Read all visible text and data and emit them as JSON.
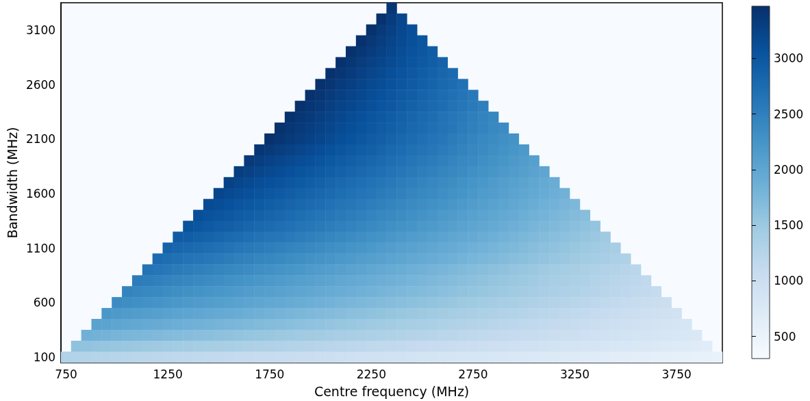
{
  "chart_data": {
    "type": "heatmap",
    "xlabel": "Centre frequency (MHz)",
    "ylabel": "Bandwidth (MHz)",
    "categories": [
      "750",
      null,
      null,
      null,
      null,
      null,
      null,
      null,
      null,
      null,
      "1250",
      null,
      null,
      null,
      null,
      null,
      null,
      null,
      null,
      null,
      "1750",
      null,
      null,
      null,
      null,
      null,
      null,
      null,
      null,
      null,
      "2250",
      null,
      null,
      null,
      null,
      null,
      null,
      null,
      null,
      null,
      "2750",
      null,
      null,
      null,
      null,
      null,
      null,
      null,
      null,
      null,
      "3250",
      null,
      null,
      null,
      null,
      null,
      null,
      null,
      null,
      null,
      "3750",
      null,
      null,
      null,
      null
    ],
    "y_categories": [
      null,
      null,
      "3100",
      null,
      null,
      null,
      null,
      "2600",
      null,
      null,
      null,
      null,
      "2100",
      null,
      null,
      null,
      null,
      "1600",
      null,
      null,
      null,
      null,
      "1100",
      null,
      null,
      null,
      null,
      "600",
      null,
      null,
      null,
      null,
      "100"
    ],
    "clim": [
      300,
      3470
    ],
    "cticks": [
      500,
      1000,
      1500,
      2000,
      2500,
      3000
    ],
    "cells": [
      [
        null,
        null,
        null,
        null,
        null,
        null,
        null,
        null,
        null,
        null,
        null,
        null,
        null,
        null,
        null,
        null,
        null,
        null,
        null,
        null,
        null,
        null,
        null,
        null,
        null,
        null,
        null,
        null,
        null,
        null,
        null,
        null,
        3400,
        null,
        null,
        null,
        null,
        null,
        null,
        null,
        null,
        null,
        null,
        null,
        null,
        null,
        null,
        null,
        null,
        null,
        null,
        null,
        null,
        null,
        null,
        null,
        null,
        null,
        null,
        null,
        null,
        null,
        null,
        null,
        null
      ],
      [
        null,
        null,
        null,
        null,
        null,
        null,
        null,
        null,
        null,
        null,
        null,
        null,
        null,
        null,
        null,
        null,
        null,
        null,
        null,
        null,
        null,
        null,
        null,
        null,
        null,
        null,
        null,
        null,
        null,
        null,
        null,
        3450,
        3320,
        3190,
        null,
        null,
        null,
        null,
        null,
        null,
        null,
        null,
        null,
        null,
        null,
        null,
        null,
        null,
        null,
        null,
        null,
        null,
        null,
        null,
        null,
        null,
        null,
        null,
        null,
        null,
        null,
        null,
        null,
        null,
        null
      ],
      [
        null,
        null,
        null,
        null,
        null,
        null,
        null,
        null,
        null,
        null,
        null,
        null,
        null,
        null,
        null,
        null,
        null,
        null,
        null,
        null,
        null,
        null,
        null,
        null,
        null,
        null,
        null,
        null,
        null,
        null,
        3450,
        3362,
        3274,
        3186,
        3098,
        null,
        null,
        null,
        null,
        null,
        null,
        null,
        null,
        null,
        null,
        null,
        null,
        null,
        null,
        null,
        null,
        null,
        null,
        null,
        null,
        null,
        null,
        null,
        null,
        null,
        null,
        null,
        null,
        null,
        null
      ],
      [
        null,
        null,
        null,
        null,
        null,
        null,
        null,
        null,
        null,
        null,
        null,
        null,
        null,
        null,
        null,
        null,
        null,
        null,
        null,
        null,
        null,
        null,
        null,
        null,
        null,
        null,
        null,
        null,
        null,
        3450,
        3378,
        3306,
        3234,
        3162,
        3090,
        3018,
        null,
        null,
        null,
        null,
        null,
        null,
        null,
        null,
        null,
        null,
        null,
        null,
        null,
        null,
        null,
        null,
        null,
        null,
        null,
        null,
        null,
        null,
        null,
        null,
        null,
        null,
        null,
        null,
        null
      ],
      [
        null,
        null,
        null,
        null,
        null,
        null,
        null,
        null,
        null,
        null,
        null,
        null,
        null,
        null,
        null,
        null,
        null,
        null,
        null,
        null,
        null,
        null,
        null,
        null,
        null,
        null,
        null,
        null,
        3450,
        3385,
        3320,
        3255,
        3190,
        3125,
        3060,
        2995,
        2930,
        null,
        null,
        null,
        null,
        null,
        null,
        null,
        null,
        null,
        null,
        null,
        null,
        null,
        null,
        null,
        null,
        null,
        null,
        null,
        null,
        null,
        null,
        null,
        null,
        null,
        null,
        null,
        null
      ],
      [
        null,
        null,
        null,
        null,
        null,
        null,
        null,
        null,
        null,
        null,
        null,
        null,
        null,
        null,
        null,
        null,
        null,
        null,
        null,
        null,
        null,
        null,
        null,
        null,
        null,
        null,
        null,
        3450,
        3390,
        3330,
        3270,
        3210,
        3150,
        3090,
        3030,
        2970,
        2910,
        2850,
        null,
        null,
        null,
        null,
        null,
        null,
        null,
        null,
        null,
        null,
        null,
        null,
        null,
        null,
        null,
        null,
        null,
        null,
        null,
        null,
        null,
        null,
        null,
        null,
        null,
        null,
        null
      ],
      [
        null,
        null,
        null,
        null,
        null,
        null,
        null,
        null,
        null,
        null,
        null,
        null,
        null,
        null,
        null,
        null,
        null,
        null,
        null,
        null,
        null,
        null,
        null,
        null,
        null,
        null,
        3450,
        3392,
        3334,
        3276,
        3218,
        3160,
        3102,
        3044,
        2986,
        2928,
        2870,
        2812,
        2754,
        null,
        null,
        null,
        null,
        null,
        null,
        null,
        null,
        null,
        null,
        null,
        null,
        null,
        null,
        null,
        null,
        null,
        null,
        null,
        null,
        null,
        null,
        null,
        null,
        null,
        null
      ],
      [
        null,
        null,
        null,
        null,
        null,
        null,
        null,
        null,
        null,
        null,
        null,
        null,
        null,
        null,
        null,
        null,
        null,
        null,
        null,
        null,
        null,
        null,
        null,
        null,
        null,
        3450,
        3395,
        3340,
        3285,
        3230,
        3175,
        3120,
        3065,
        3010,
        2955,
        2900,
        2845,
        2790,
        2735,
        2680,
        null,
        null,
        null,
        null,
        null,
        null,
        null,
        null,
        null,
        null,
        null,
        null,
        null,
        null,
        null,
        null,
        null,
        null,
        null,
        null,
        null,
        null,
        null,
        null,
        null
      ],
      [
        null,
        null,
        null,
        null,
        null,
        null,
        null,
        null,
        null,
        null,
        null,
        null,
        null,
        null,
        null,
        null,
        null,
        null,
        null,
        null,
        null,
        null,
        null,
        null,
        3450,
        3396,
        3342,
        3288,
        3234,
        3180,
        3126,
        3072,
        3018,
        2964,
        2910,
        2856,
        2802,
        2748,
        2694,
        2640,
        2586,
        null,
        null,
        null,
        null,
        null,
        null,
        null,
        null,
        null,
        null,
        null,
        null,
        null,
        null,
        null,
        null,
        null,
        null,
        null,
        null,
        null,
        null,
        null,
        null
      ],
      [
        null,
        null,
        null,
        null,
        null,
        null,
        null,
        null,
        null,
        null,
        null,
        null,
        null,
        null,
        null,
        null,
        null,
        null,
        null,
        null,
        null,
        null,
        null,
        3450,
        3398,
        3346,
        3294,
        3242,
        3190,
        3138,
        3086,
        3034,
        2982,
        2930,
        2878,
        2826,
        2774,
        2722,
        2670,
        2618,
        2566,
        2514,
        null,
        null,
        null,
        null,
        null,
        null,
        null,
        null,
        null,
        null,
        null,
        null,
        null,
        null,
        null,
        null,
        null,
        null,
        null,
        null,
        null,
        null,
        null
      ],
      [
        null,
        null,
        null,
        null,
        null,
        null,
        null,
        null,
        null,
        null,
        null,
        null,
        null,
        null,
        null,
        null,
        null,
        null,
        null,
        null,
        null,
        null,
        3450,
        3398,
        3346,
        3294,
        3242,
        3190,
        3138,
        3086,
        3034,
        2982,
        2930,
        2878,
        2826,
        2774,
        2722,
        2670,
        2618,
        2566,
        2514,
        2462,
        2410,
        null,
        null,
        null,
        null,
        null,
        null,
        null,
        null,
        null,
        null,
        null,
        null,
        null,
        null,
        null,
        null,
        null,
        null,
        null,
        null,
        null,
        null
      ],
      [
        null,
        null,
        null,
        null,
        null,
        null,
        null,
        null,
        null,
        null,
        null,
        null,
        null,
        null,
        null,
        null,
        null,
        null,
        null,
        null,
        null,
        3450,
        3400,
        3350,
        3300,
        3250,
        3200,
        3150,
        3100,
        3050,
        3000,
        2950,
        2900,
        2850,
        2800,
        2750,
        2700,
        2650,
        2600,
        2550,
        2500,
        2450,
        2400,
        2350,
        null,
        null,
        null,
        null,
        null,
        null,
        null,
        null,
        null,
        null,
        null,
        null,
        null,
        null,
        null,
        null,
        null,
        null,
        null,
        null,
        null
      ],
      [
        null,
        null,
        null,
        null,
        null,
        null,
        null,
        null,
        null,
        null,
        null,
        null,
        null,
        null,
        null,
        null,
        null,
        null,
        null,
        null,
        3450,
        3400,
        3350,
        3300,
        3250,
        3200,
        3150,
        3100,
        3050,
        3000,
        2950,
        2900,
        2850,
        2800,
        2750,
        2700,
        2650,
        2600,
        2550,
        2500,
        2450,
        2400,
        2350,
        2300,
        2250,
        null,
        null,
        null,
        null,
        null,
        null,
        null,
        null,
        null,
        null,
        null,
        null,
        null,
        null,
        null,
        null,
        null,
        null,
        null,
        null
      ],
      [
        null,
        null,
        null,
        null,
        null,
        null,
        null,
        null,
        null,
        null,
        null,
        null,
        null,
        null,
        null,
        null,
        null,
        null,
        null,
        3400,
        3353,
        3306,
        3259,
        3212,
        3165,
        3118,
        3071,
        3024,
        2977,
        2930,
        2883,
        2836,
        2789,
        2742,
        2695,
        2648,
        2601,
        2554,
        2507,
        2460,
        2413,
        2366,
        2319,
        2272,
        2225,
        2178,
        null,
        null,
        null,
        null,
        null,
        null,
        null,
        null,
        null,
        null,
        null,
        null,
        null,
        null,
        null,
        null,
        null,
        null,
        null
      ],
      [
        null,
        null,
        null,
        null,
        null,
        null,
        null,
        null,
        null,
        null,
        null,
        null,
        null,
        null,
        null,
        null,
        null,
        null,
        3350,
        3305,
        3260,
        3215,
        3170,
        3125,
        3080,
        3035,
        2990,
        2945,
        2900,
        2855,
        2810,
        2765,
        2720,
        2675,
        2630,
        2585,
        2540,
        2495,
        2450,
        2405,
        2360,
        2315,
        2270,
        2225,
        2180,
        2135,
        2090,
        null,
        null,
        null,
        null,
        null,
        null,
        null,
        null,
        null,
        null,
        null,
        null,
        null,
        null,
        null,
        null,
        null,
        null
      ],
      [
        null,
        null,
        null,
        null,
        null,
        null,
        null,
        null,
        null,
        null,
        null,
        null,
        null,
        null,
        null,
        null,
        null,
        3300,
        3257,
        3214,
        3171,
        3128,
        3085,
        3042,
        2999,
        2956,
        2913,
        2870,
        2827,
        2784,
        2741,
        2698,
        2655,
        2612,
        2569,
        2526,
        2483,
        2440,
        2397,
        2354,
        2311,
        2268,
        2225,
        2182,
        2139,
        2096,
        2053,
        2010,
        null,
        null,
        null,
        null,
        null,
        null,
        null,
        null,
        null,
        null,
        null,
        null,
        null,
        null,
        null,
        null,
        null
      ],
      [
        null,
        null,
        null,
        null,
        null,
        null,
        null,
        null,
        null,
        null,
        null,
        null,
        null,
        null,
        null,
        null,
        3250,
        3208,
        3166,
        3124,
        3082,
        3040,
        2998,
        2956,
        2914,
        2872,
        2830,
        2788,
        2746,
        2704,
        2662,
        2620,
        2578,
        2536,
        2494,
        2452,
        2410,
        2368,
        2326,
        2284,
        2242,
        2200,
        2158,
        2116,
        2074,
        2032,
        1990,
        1948,
        1906,
        null,
        null,
        null,
        null,
        null,
        null,
        null,
        null,
        null,
        null,
        null,
        null,
        null,
        null,
        null,
        null
      ],
      [
        null,
        null,
        null,
        null,
        null,
        null,
        null,
        null,
        null,
        null,
        null,
        null,
        null,
        null,
        null,
        3200,
        3160,
        3120,
        3080,
        3040,
        3000,
        2960,
        2920,
        2880,
        2840,
        2800,
        2760,
        2720,
        2680,
        2640,
        2600,
        2560,
        2520,
        2480,
        2440,
        2400,
        2360,
        2320,
        2280,
        2240,
        2200,
        2160,
        2120,
        2080,
        2040,
        2000,
        1960,
        1920,
        1880,
        1840,
        null,
        null,
        null,
        null,
        null,
        null,
        null,
        null,
        null,
        null,
        null,
        null,
        null,
        null,
        null
      ],
      [
        null,
        null,
        null,
        null,
        null,
        null,
        null,
        null,
        null,
        null,
        null,
        null,
        null,
        null,
        3150,
        3111,
        3072,
        3033,
        2994,
        2955,
        2916,
        2877,
        2838,
        2799,
        2760,
        2721,
        2682,
        2643,
        2604,
        2565,
        2526,
        2487,
        2448,
        2409,
        2370,
        2331,
        2292,
        2253,
        2214,
        2175,
        2136,
        2097,
        2058,
        2019,
        1980,
        1941,
        1902,
        1863,
        1824,
        1785,
        1746,
        null,
        null,
        null,
        null,
        null,
        null,
        null,
        null,
        null,
        null,
        null,
        null,
        null,
        null
      ],
      [
        null,
        null,
        null,
        null,
        null,
        null,
        null,
        null,
        null,
        null,
        null,
        null,
        null,
        3100,
        3062,
        3024,
        2986,
        2948,
        2910,
        2872,
        2834,
        2796,
        2758,
        2720,
        2682,
        2644,
        2606,
        2568,
        2530,
        2492,
        2454,
        2416,
        2378,
        2340,
        2302,
        2264,
        2226,
        2188,
        2150,
        2112,
        2074,
        2036,
        1998,
        1960,
        1922,
        1884,
        1846,
        1808,
        1770,
        1732,
        1694,
        1656,
        null,
        null,
        null,
        null,
        null,
        null,
        null,
        null,
        null,
        null,
        null,
        null,
        null
      ],
      [
        null,
        null,
        null,
        null,
        null,
        null,
        null,
        null,
        null,
        null,
        null,
        null,
        3050,
        3013,
        2976,
        2939,
        2902,
        2865,
        2828,
        2791,
        2754,
        2717,
        2680,
        2643,
        2606,
        2569,
        2532,
        2495,
        2458,
        2421,
        2384,
        2347,
        2310,
        2273,
        2236,
        2199,
        2162,
        2125,
        2088,
        2051,
        2014,
        1977,
        1940,
        1903,
        1866,
        1829,
        1792,
        1755,
        1718,
        1681,
        1644,
        1607,
        1570,
        null,
        null,
        null,
        null,
        null,
        null,
        null,
        null,
        null,
        null,
        null,
        null
      ],
      [
        null,
        null,
        null,
        null,
        null,
        null,
        null,
        null,
        null,
        null,
        null,
        2950,
        2915,
        2880,
        2845,
        2810,
        2775,
        2740,
        2705,
        2670,
        2635,
        2600,
        2565,
        2530,
        2495,
        2460,
        2425,
        2390,
        2355,
        2320,
        2285,
        2250,
        2215,
        2180,
        2145,
        2110,
        2075,
        2040,
        2005,
        1970,
        1935,
        1900,
        1865,
        1830,
        1795,
        1760,
        1725,
        1690,
        1655,
        1620,
        1585,
        1550,
        1515,
        1480,
        null,
        null,
        null,
        null,
        null,
        null,
        null,
        null,
        null,
        null,
        null
      ],
      [
        null,
        null,
        null,
        null,
        null,
        null,
        null,
        null,
        null,
        null,
        2850,
        2817,
        2784,
        2751,
        2718,
        2685,
        2652,
        2619,
        2586,
        2553,
        2520,
        2487,
        2454,
        2421,
        2388,
        2355,
        2322,
        2289,
        2256,
        2223,
        2190,
        2157,
        2124,
        2091,
        2058,
        2025,
        1992,
        1959,
        1926,
        1893,
        1860,
        1827,
        1794,
        1761,
        1728,
        1695,
        1662,
        1629,
        1596,
        1563,
        1530,
        1497,
        1464,
        1431,
        1398,
        null,
        null,
        null,
        null,
        null,
        null,
        null,
        null,
        null,
        null
      ],
      [
        null,
        null,
        null,
        null,
        null,
        null,
        null,
        null,
        null,
        2750,
        2719,
        2688,
        2657,
        2626,
        2595,
        2564,
        2533,
        2502,
        2471,
        2440,
        2409,
        2378,
        2347,
        2316,
        2285,
        2254,
        2223,
        2192,
        2161,
        2130,
        2099,
        2068,
        2037,
        2006,
        1975,
        1944,
        1913,
        1882,
        1851,
        1820,
        1789,
        1758,
        1727,
        1696,
        1665,
        1634,
        1603,
        1572,
        1541,
        1510,
        1479,
        1448,
        1417,
        1386,
        1355,
        1324,
        null,
        null,
        null,
        null,
        null,
        null,
        null,
        null,
        null
      ],
      [
        null,
        null,
        null,
        null,
        null,
        null,
        null,
        null,
        2650,
        2620,
        2590,
        2560,
        2530,
        2500,
        2470,
        2440,
        2410,
        2380,
        2350,
        2320,
        2290,
        2260,
        2230,
        2200,
        2170,
        2140,
        2110,
        2080,
        2050,
        2020,
        1990,
        1960,
        1930,
        1900,
        1870,
        1840,
        1810,
        1780,
        1750,
        1720,
        1690,
        1660,
        1630,
        1600,
        1570,
        1540,
        1510,
        1480,
        1450,
        1420,
        1390,
        1360,
        1330,
        1300,
        1270,
        1240,
        1210,
        null,
        null,
        null,
        null,
        null,
        null,
        null,
        null
      ],
      [
        null,
        null,
        null,
        null,
        null,
        null,
        null,
        2550,
        2522,
        2494,
        2466,
        2438,
        2410,
        2382,
        2354,
        2326,
        2298,
        2270,
        2242,
        2214,
        2186,
        2158,
        2130,
        2102,
        2074,
        2046,
        2018,
        1990,
        1962,
        1934,
        1906,
        1878,
        1850,
        1822,
        1794,
        1766,
        1738,
        1710,
        1682,
        1654,
        1626,
        1598,
        1570,
        1542,
        1514,
        1486,
        1458,
        1430,
        1402,
        1374,
        1346,
        1318,
        1290,
        1262,
        1234,
        1206,
        1178,
        1150,
        null,
        null,
        null,
        null,
        null,
        null,
        null
      ],
      [
        null,
        null,
        null,
        null,
        null,
        null,
        2450,
        2424,
        2398,
        2372,
        2346,
        2320,
        2294,
        2268,
        2242,
        2216,
        2190,
        2164,
        2138,
        2112,
        2086,
        2060,
        2034,
        2008,
        1982,
        1956,
        1930,
        1904,
        1878,
        1852,
        1826,
        1800,
        1774,
        1748,
        1722,
        1696,
        1670,
        1644,
        1618,
        1592,
        1566,
        1540,
        1514,
        1488,
        1462,
        1436,
        1410,
        1384,
        1358,
        1332,
        1306,
        1280,
        1254,
        1228,
        1202,
        1176,
        1150,
        1124,
        1098,
        null,
        null,
        null,
        null,
        null,
        null
      ],
      [
        null,
        null,
        null,
        null,
        null,
        2350,
        2325,
        2300,
        2275,
        2250,
        2225,
        2200,
        2175,
        2150,
        2125,
        2100,
        2075,
        2050,
        2025,
        2000,
        1975,
        1950,
        1925,
        1900,
        1875,
        1850,
        1825,
        1800,
        1775,
        1750,
        1725,
        1700,
        1675,
        1650,
        1625,
        1600,
        1575,
        1550,
        1525,
        1500,
        1475,
        1450,
        1425,
        1400,
        1375,
        1350,
        1325,
        1300,
        1275,
        1250,
        1225,
        1200,
        1175,
        1150,
        1125,
        1100,
        1075,
        1050,
        1025,
        1000,
        null,
        null,
        null,
        null,
        null
      ],
      [
        null,
        null,
        null,
        null,
        2200,
        2177,
        2154,
        2131,
        2108,
        2085,
        2062,
        2039,
        2016,
        1993,
        1970,
        1947,
        1924,
        1901,
        1878,
        1855,
        1832,
        1809,
        1786,
        1763,
        1740,
        1717,
        1694,
        1671,
        1648,
        1625,
        1602,
        1579,
        1556,
        1533,
        1510,
        1487,
        1464,
        1441,
        1418,
        1395,
        1372,
        1349,
        1326,
        1303,
        1280,
        1257,
        1234,
        1211,
        1188,
        1165,
        1142,
        1119,
        1096,
        1073,
        1050,
        1027,
        1004,
        981,
        958,
        935,
        912,
        null,
        null,
        null,
        null
      ],
      [
        null,
        null,
        null,
        2050,
        2029,
        2008,
        1987,
        1966,
        1945,
        1924,
        1903,
        1882,
        1861,
        1840,
        1819,
        1798,
        1777,
        1756,
        1735,
        1714,
        1693,
        1672,
        1651,
        1630,
        1609,
        1588,
        1567,
        1546,
        1525,
        1504,
        1483,
        1462,
        1441,
        1420,
        1399,
        1378,
        1357,
        1336,
        1315,
        1294,
        1273,
        1252,
        1231,
        1210,
        1189,
        1168,
        1147,
        1126,
        1105,
        1084,
        1063,
        1042,
        1021,
        1000,
        979,
        958,
        937,
        916,
        895,
        874,
        853,
        832,
        null,
        null,
        null
      ],
      [
        null,
        null,
        1850,
        1832,
        1814,
        1796,
        1778,
        1760,
        1742,
        1724,
        1706,
        1688,
        1670,
        1652,
        1634,
        1616,
        1598,
        1580,
        1562,
        1544,
        1526,
        1508,
        1490,
        1472,
        1454,
        1436,
        1418,
        1400,
        1382,
        1364,
        1346,
        1328,
        1310,
        1292,
        1274,
        1256,
        1238,
        1220,
        1202,
        1184,
        1166,
        1148,
        1130,
        1112,
        1094,
        1076,
        1058,
        1040,
        1022,
        1004,
        986,
        968,
        950,
        932,
        914,
        896,
        878,
        860,
        842,
        824,
        806,
        788,
        770,
        null,
        null
      ],
      [
        null,
        1600,
        1585,
        1570,
        1555,
        1540,
        1525,
        1510,
        1495,
        1480,
        1465,
        1450,
        1435,
        1420,
        1405,
        1390,
        1375,
        1360,
        1345,
        1330,
        1315,
        1300,
        1285,
        1270,
        1255,
        1240,
        1225,
        1210,
        1195,
        1180,
        1165,
        1150,
        1135,
        1120,
        1105,
        1090,
        1075,
        1060,
        1045,
        1030,
        1015,
        1000,
        985,
        970,
        955,
        940,
        925,
        910,
        895,
        880,
        865,
        850,
        835,
        820,
        805,
        790,
        775,
        760,
        745,
        730,
        715,
        700,
        685,
        670,
        null
      ],
      [
        1300,
        1288,
        1276,
        1264,
        1252,
        1240,
        1228,
        1216,
        1204,
        1192,
        1180,
        1168,
        1156,
        1144,
        1132,
        1120,
        1108,
        1096,
        1084,
        1072,
        1060,
        1048,
        1036,
        1024,
        1012,
        1000,
        988,
        976,
        964,
        952,
        940,
        928,
        916,
        904,
        892,
        880,
        868,
        856,
        844,
        832,
        820,
        808,
        796,
        784,
        772,
        760,
        748,
        736,
        724,
        712,
        700,
        688,
        676,
        664,
        652,
        640,
        628,
        616,
        604,
        592,
        580,
        568,
        556,
        544,
        532
      ]
    ]
  }
}
